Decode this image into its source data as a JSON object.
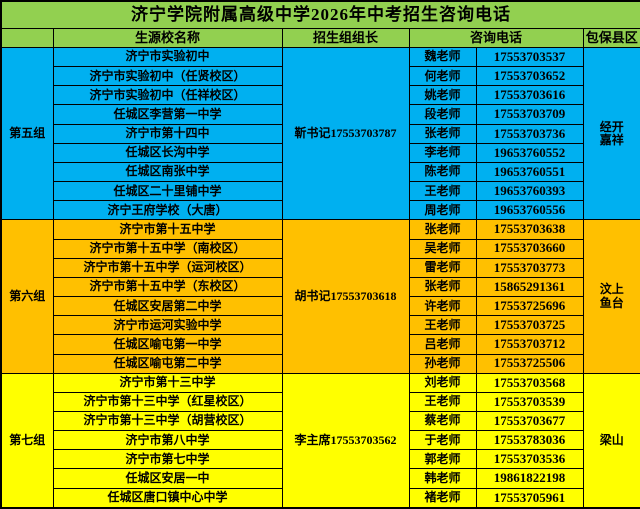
{
  "title": "济宁学院附属高级中学2026年中考招生咨询电话",
  "header": {
    "school": "生源校名称",
    "leader": "招生组组长",
    "phone": "咨询电话",
    "county": "包保县区"
  },
  "colors": {
    "title_bg": "#92D050",
    "header_bg": "#92D050",
    "group5_bg": "#00B0F0",
    "group6_bg": "#FFC000",
    "group7_bg": "#FFFF00",
    "border": "#000000",
    "text": "#000000"
  },
  "groups": [
    {
      "name": "第五组",
      "bg": "#00B0F0",
      "leader": "靳书记17553703787",
      "county": "经开\n嘉祥",
      "rows": [
        {
          "school": "济宁市实验初中",
          "teacher": "魏老师",
          "phone": "17553703537"
        },
        {
          "school": "济宁市实验初中（任贤校区）",
          "teacher": "何老师",
          "phone": "17553703652"
        },
        {
          "school": "济宁市实验初中（任祥校区）",
          "teacher": "姚老师",
          "phone": "17553703616"
        },
        {
          "school": "任城区李营第一中学",
          "teacher": "段老师",
          "phone": "17553703709"
        },
        {
          "school": "济宁市第十四中",
          "teacher": "张老师",
          "phone": "17553703736"
        },
        {
          "school": "任城区长沟中学",
          "teacher": "李老师",
          "phone": "19653760552"
        },
        {
          "school": "任城区南张中学",
          "teacher": "陈老师",
          "phone": "19653760551"
        },
        {
          "school": "任城区二十里铺中学",
          "teacher": "王老师",
          "phone": "19653760393"
        },
        {
          "school": "济宁王府学校（大唐）",
          "teacher": "周老师",
          "phone": "19653760556"
        }
      ]
    },
    {
      "name": "第六组",
      "bg": "#FFC000",
      "leader": "胡书记17553703618",
      "county": "汶上\n鱼台",
      "rows": [
        {
          "school": "济宁市第十五中学",
          "teacher": "张老师",
          "phone": "17553703638"
        },
        {
          "school": "济宁市第十五中学（南校区）",
          "teacher": "吴老师",
          "phone": "17553703660"
        },
        {
          "school": "济宁市第十五中学（运河校区）",
          "teacher": "雷老师",
          "phone": "17553703773"
        },
        {
          "school": "济宁市第十五中学（东校区）",
          "teacher": "张老师",
          "phone": "15865291361"
        },
        {
          "school": "任城区安居第二中学",
          "teacher": "许老师",
          "phone": "17553725696"
        },
        {
          "school": "济宁市运河实验中学",
          "teacher": "王老师",
          "phone": "17553703725"
        },
        {
          "school": "任城区喻屯第一中学",
          "teacher": "吕老师",
          "phone": "17553703712"
        },
        {
          "school": "任城区喻屯第二中学",
          "teacher": "孙老师",
          "phone": "17553725506"
        }
      ]
    },
    {
      "name": "第七组",
      "bg": "#FFFF00",
      "leader": "李主席17553703562",
      "county": "梁山",
      "rows": [
        {
          "school": "济宁市第十三中学",
          "teacher": "刘老师",
          "phone": "17553703568"
        },
        {
          "school": "济宁市第十三中学（红星校区）",
          "teacher": "王老师",
          "phone": "17553703539"
        },
        {
          "school": "济宁市第十三中学（胡营校区）",
          "teacher": "蔡老师",
          "phone": "17553703677"
        },
        {
          "school": "济宁市第八中学",
          "teacher": "于老师",
          "phone": "17553783036"
        },
        {
          "school": "济宁市第七中学",
          "teacher": "郭老师",
          "phone": "17553703536"
        },
        {
          "school": "任城区安居一中",
          "teacher": "韩老师",
          "phone": "19861822198"
        },
        {
          "school": "任城区唐口镇中心中学",
          "teacher": "褚老师",
          "phone": "17553705961"
        }
      ]
    }
  ]
}
